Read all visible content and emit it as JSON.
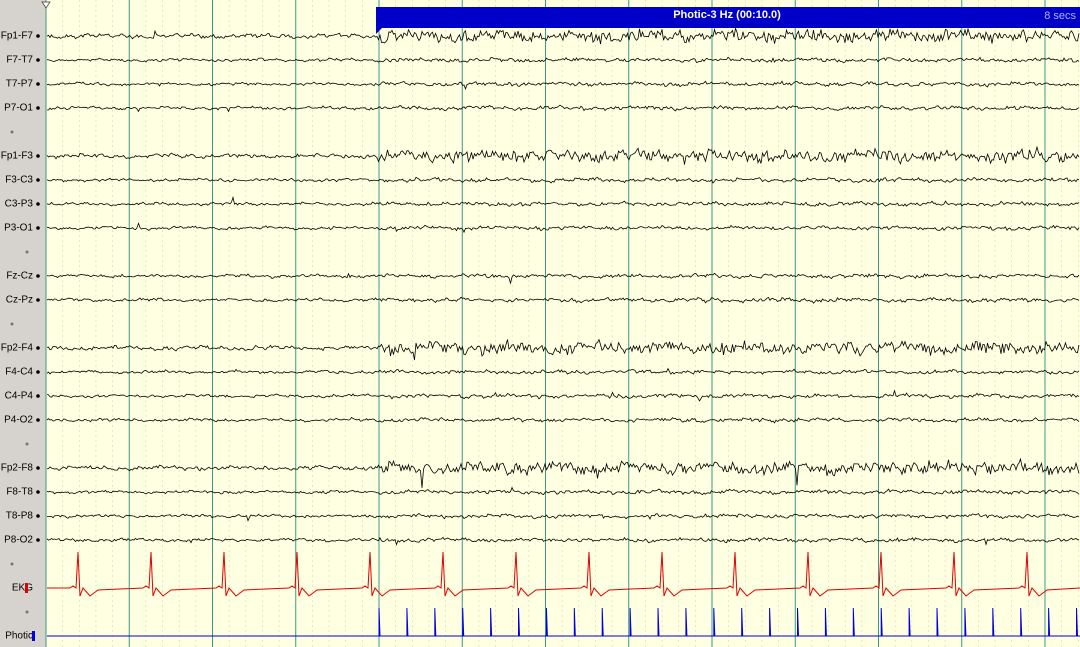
{
  "banner": {
    "event": "Photic-3 Hz (00:10.0)",
    "duration": "8 secs"
  },
  "groups": [
    [
      "Fp1-F7",
      "F7-T7",
      "T7-P7",
      "P7-O1"
    ],
    [
      "Fp1-F3",
      "F3-C3",
      "C3-P3",
      "P3-O1"
    ],
    [
      "Fz-Cz",
      "Cz-Pz"
    ],
    [
      "Fp2-F4",
      "F4-C4",
      "C4-P4",
      "P4-O2"
    ],
    [
      "Fp2-F8",
      "F8-T8",
      "T8-P8",
      "P8-O2"
    ],
    [
      "EKG"
    ],
    [
      "Photic"
    ]
  ]
}
